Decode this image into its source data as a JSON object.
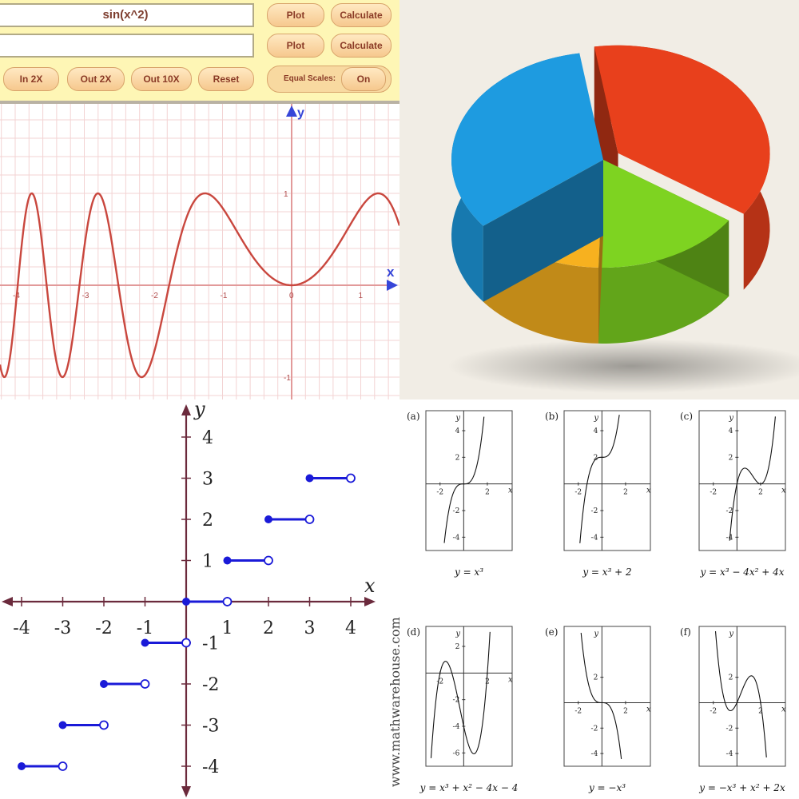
{
  "grapher": {
    "function1": "sin(x^2)",
    "function2": "",
    "plot_label": "Plot",
    "calculate_label": "Calculate",
    "zoom_in_label": "In 2X",
    "zoom_out_label": "Out 2X",
    "zoom_out10_label": "Out 10X",
    "reset_label": "Reset",
    "equal_scales_label": "Equal Scales:",
    "equal_scales_value": "On",
    "axis_x": "x",
    "axis_y": "y",
    "x_ticks": [
      "-4",
      "-3",
      "-2",
      "-1",
      "0",
      "1"
    ],
    "y_ticks": [
      "1",
      "-1"
    ]
  },
  "pie": {
    "colors": [
      "#e8401c",
      "#7ed321",
      "#f7b11f",
      "#1e9be0"
    ],
    "slices": [
      0.37,
      0.16,
      0.14,
      0.33
    ]
  },
  "step_graph": {
    "axis_x": "x",
    "axis_y": "y",
    "x_ticks": [
      "-4",
      "-3",
      "-2",
      "-1",
      "1",
      "2",
      "3",
      "4"
    ],
    "y_ticks": [
      "4",
      "3",
      "2",
      "1",
      "-1",
      "-2",
      "-3",
      "-4"
    ],
    "watermark": "www.mathwarehouse.com",
    "color": "#1a1ad8"
  },
  "panels": [
    {
      "id": "(a)",
      "caption": "y = x³",
      "yticks": [
        "4",
        "2",
        "-2",
        "-4"
      ]
    },
    {
      "id": "(b)",
      "caption": "y = x³ + 2",
      "yticks": [
        "4",
        "2",
        "-2",
        "-4"
      ]
    },
    {
      "id": "(c)",
      "caption": "y = x³ − 4x² + 4x",
      "yticks": [
        "4",
        "2",
        "-2",
        "-4"
      ]
    },
    {
      "id": "(d)",
      "caption": "y = x³ + x² − 4x − 4",
      "yticks": [
        "2",
        "-2",
        "-4",
        "-6"
      ]
    },
    {
      "id": "(e)",
      "caption": "y = −x³",
      "yticks": [
        "2",
        "-2",
        "-4"
      ]
    },
    {
      "id": "(f)",
      "caption": "y = −x³ + x² + 2x",
      "yticks": [
        "2",
        "-2",
        "-4"
      ]
    }
  ],
  "panel_xticks": [
    "-2",
    "2"
  ],
  "panel_axis_x": "x",
  "panel_axis_y": "y"
}
